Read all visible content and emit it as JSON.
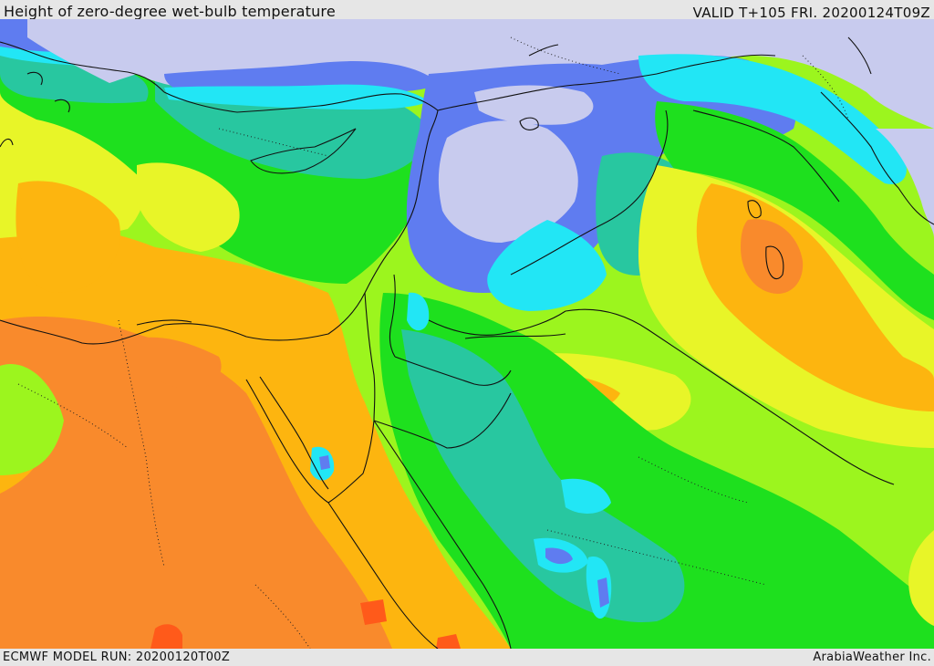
{
  "header": {
    "title": "Height of zero-degree wet-bulb temperature",
    "valid": "VALID T+105 FRI. 20200124T09Z"
  },
  "footer": {
    "model_run": "ECMWF MODEL RUN: 20200120T00Z",
    "credit": "ArabiaWeather Inc."
  },
  "map": {
    "palette": {
      "very_low": "#c8cbee",
      "low_blue": "#5f7cf0",
      "cyan": "#22e6f5",
      "teal": "#28c7a0",
      "green": "#1ee01e",
      "light_green": "#9cf51e",
      "yellow": "#e8f528",
      "orange": "#fdb50f",
      "dark_orange": "#f98a2c",
      "red_orange": "#ff5a1a"
    }
  }
}
